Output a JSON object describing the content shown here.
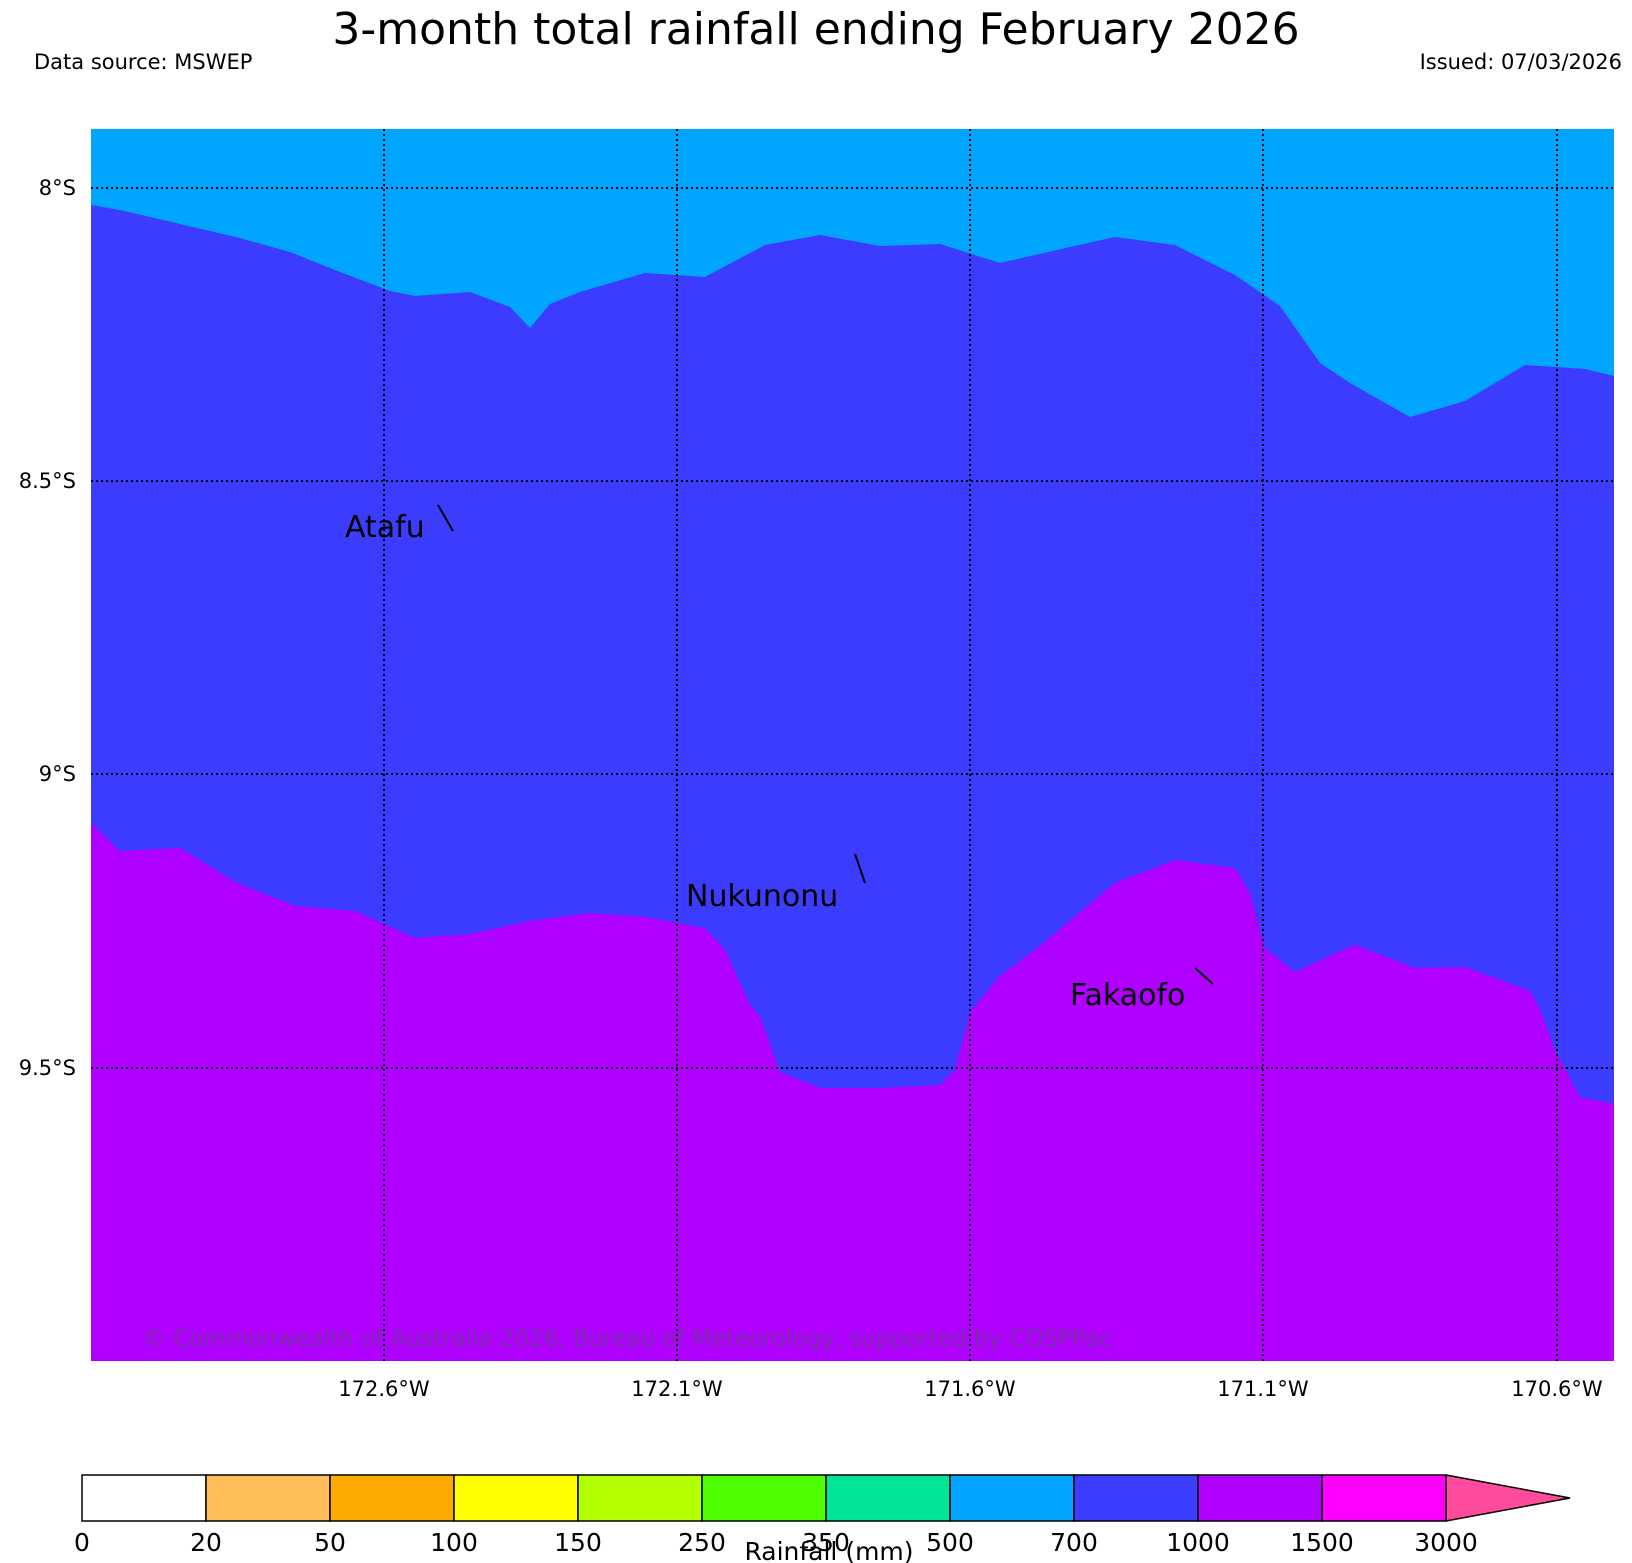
{
  "header": {
    "title": "3-month total rainfall ending February 2026",
    "data_source": "Data source: MSWEP",
    "issued": "Issued: 07/03/2026"
  },
  "map": {
    "lat_labels": [
      "8°S",
      "8.5°S",
      "9°S",
      "9.5°S"
    ],
    "lon_labels": [
      "172.6°W",
      "172.1°W",
      "171.6°W",
      "171.1°W",
      "170.6°W"
    ],
    "places": [
      {
        "name": "Atafu"
      },
      {
        "name": "Nukunonu"
      },
      {
        "name": "Fakaofo"
      }
    ],
    "copyright": "© Commonwealth of Australia 2026, Bureau of Meteorology, supported by COSPPac",
    "region_colors": {
      "700_1000": "#00a5ff",
      "1000_1500": "#3c3cff",
      "1500_3000": "#b000ff"
    }
  },
  "colorbar": {
    "label": "Rainfall (mm)",
    "ticks": [
      "0",
      "20",
      "50",
      "100",
      "150",
      "250",
      "350",
      "500",
      "700",
      "1000",
      "1500",
      "3000"
    ],
    "colors": [
      "#ffffff",
      "#ffbe5a",
      "#ffaa00",
      "#ffff00",
      "#b4ff00",
      "#50ff00",
      "#00e696",
      "#00a5ff",
      "#3c3cff",
      "#b000ff",
      "#ff00ff",
      "#ff4b9b"
    ]
  }
}
